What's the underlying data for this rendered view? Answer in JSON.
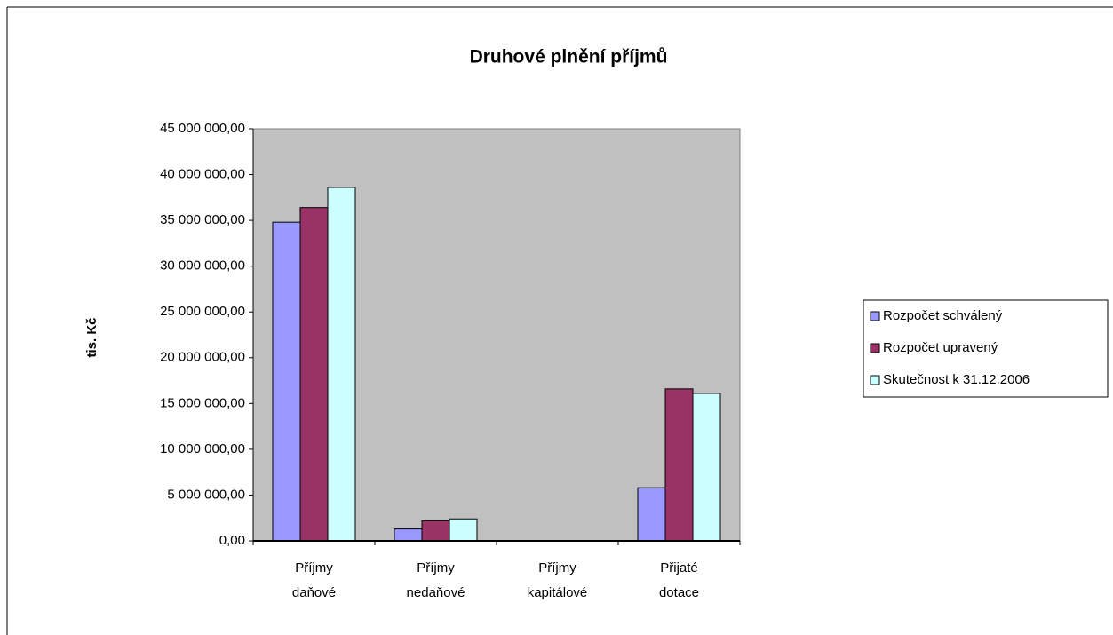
{
  "chart_data": {
    "type": "bar",
    "title": "Druhové plnění příjmů",
    "y_label": "tis. Kč",
    "categories": [
      "Příjmy daňové",
      "Příjmy nedaňové",
      "Příjmy kapitálové",
      "Přijaté dotace"
    ],
    "series": [
      {
        "name": "Rozpočet schválený",
        "color": "#9999ff",
        "values": [
          34800000,
          1300000,
          0,
          5800000
        ]
      },
      {
        "name": "Rozpočet upravený",
        "color": "#993366",
        "values": [
          36400000,
          2200000,
          0,
          16600000
        ]
      },
      {
        "name": "Skutečnost k 31.12.2006",
        "color": "#ccffff",
        "values": [
          38600000,
          2400000,
          0,
          16100000
        ]
      }
    ],
    "ylim": [
      0,
      45000000
    ],
    "yticks": [
      {
        "value": 0,
        "label": "0,00"
      },
      {
        "value": 5000000,
        "label": "5 000 000,00"
      },
      {
        "value": 10000000,
        "label": "10 000 000,00"
      },
      {
        "value": 15000000,
        "label": "15 000 000,00"
      },
      {
        "value": 20000000,
        "label": "20 000 000,00"
      },
      {
        "value": 25000000,
        "label": "25 000 000,00"
      },
      {
        "value": 30000000,
        "label": "30 000 000,00"
      },
      {
        "value": 35000000,
        "label": "35 000 000,00"
      },
      {
        "value": 40000000,
        "label": "40 000 000,00"
      },
      {
        "value": 45000000,
        "label": "45 000 000,00"
      }
    ],
    "plot_background": "#c0c0c0",
    "grid": false,
    "legend": "right"
  }
}
